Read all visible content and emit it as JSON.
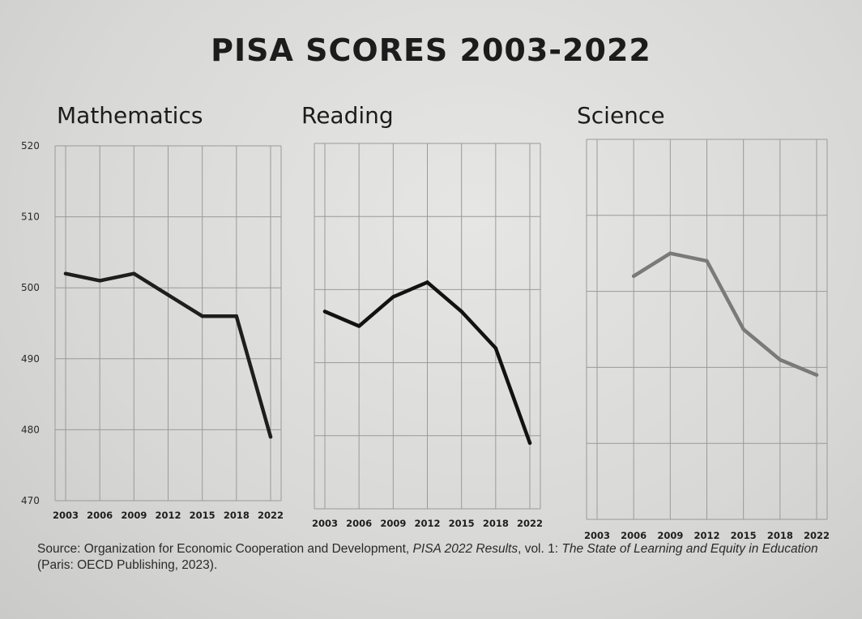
{
  "title": "PISA SCORES 2003-2022",
  "source": {
    "prefix": "Source: Organization for Economic Cooperation and Development, ",
    "italic1": "PISA 2022 Results",
    "mid": ", vol. 1: ",
    "italic2": "The State of Learning and Equity in Education",
    "suffix": " (Paris: OECD Publishing, 2023)."
  },
  "chart_data": [
    {
      "type": "line",
      "title": "Mathematics",
      "x": [
        "2003",
        "2006",
        "2009",
        "2012",
        "2015",
        "2018",
        "2022"
      ],
      "y": [
        502,
        501,
        502,
        499,
        496,
        496,
        479
      ],
      "ylim": [
        470,
        520
      ],
      "yticks": [
        470,
        480,
        490,
        500,
        510,
        520
      ],
      "grid": true,
      "color": "#1e1e1e"
    },
    {
      "type": "line",
      "title": "Reading",
      "x": [
        "2003",
        "2006",
        "2009",
        "2012",
        "2015",
        "2018",
        "2022"
      ],
      "y": [
        497,
        495,
        499,
        501,
        497,
        492,
        479
      ],
      "ylim": [
        470,
        520
      ],
      "grid": true,
      "color": "#121212"
    },
    {
      "type": "line",
      "title": "Science",
      "x": [
        "2003",
        "2006",
        "2009",
        "2012",
        "2015",
        "2018",
        "2022"
      ],
      "y": [
        null,
        502,
        505,
        504,
        495,
        491,
        489
      ],
      "ylim": [
        470,
        520
      ],
      "grid": true,
      "color": "#7a7a7a"
    }
  ]
}
